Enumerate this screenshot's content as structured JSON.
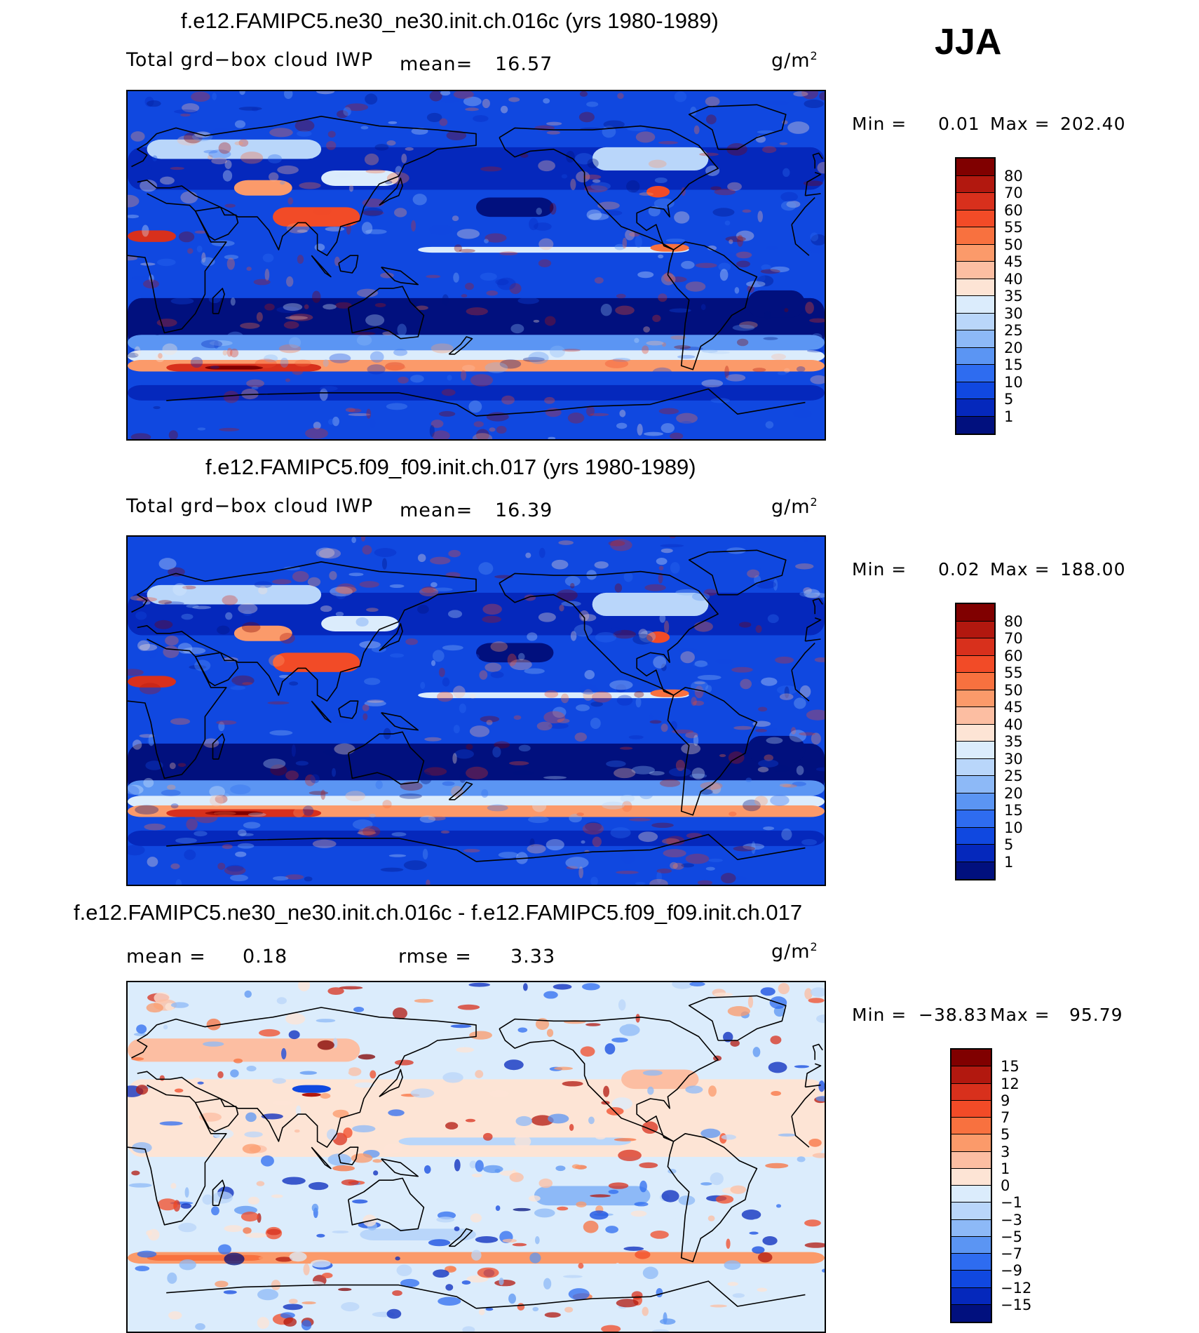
{
  "season": "JJA",
  "panels": [
    {
      "id": "p1",
      "title": "f.e12.FAMIPC5.ne30_ne30.init.ch.016c (yrs 1980-1989)",
      "variable": "Total grd−box cloud IWP",
      "mean_label": "mean=",
      "mean_value": "16.57",
      "units": "g/m",
      "units_exp": "2",
      "min_label": "Min =",
      "min_value": "0.01",
      "max_label": "Max =",
      "max_value": "202.40",
      "ticks": [
        "80",
        "70",
        "60",
        "55",
        "50",
        "45",
        "40",
        "35",
        "30",
        "25",
        "20",
        "15",
        "10",
        "5",
        "1"
      ],
      "colors": [
        "#800000",
        "#b2180f",
        "#d8301c",
        "#f24b27",
        "#f8713f",
        "#fb9a6a",
        "#fcbea2",
        "#fde4d5",
        "#dbecfc",
        "#b9d6fa",
        "#8db9f7",
        "#5b95f3",
        "#2e6cf0",
        "#1048e0",
        "#0528bc",
        "#01107e"
      ],
      "field": "base"
    },
    {
      "id": "p2",
      "title": "f.e12.FAMIPC5.f09_f09.init.ch.017 (yrs 1980-1989)",
      "variable": "Total grd−box cloud IWP",
      "mean_label": "mean=",
      "mean_value": "16.39",
      "units": "g/m",
      "units_exp": "2",
      "min_label": "Min =",
      "min_value": "0.02",
      "max_label": "Max =",
      "max_value": "188.00",
      "ticks": [
        "80",
        "70",
        "60",
        "55",
        "50",
        "45",
        "40",
        "35",
        "30",
        "25",
        "20",
        "15",
        "10",
        "5",
        "1"
      ],
      "colors": [
        "#800000",
        "#b2180f",
        "#d8301c",
        "#f24b27",
        "#f8713f",
        "#fb9a6a",
        "#fcbea2",
        "#fde4d5",
        "#dbecfc",
        "#b9d6fa",
        "#8db9f7",
        "#5b95f3",
        "#2e6cf0",
        "#1048e0",
        "#0528bc",
        "#01107e"
      ],
      "field": "base"
    },
    {
      "id": "p3",
      "title": "f.e12.FAMIPC5.ne30_ne30.init.ch.016c - f.e12.FAMIPC5.f09_f09.init.ch.017",
      "mean_label": "mean =",
      "mean_value": "0.18",
      "rmse_label": "rmse =",
      "rmse_value": "3.33",
      "units": "g/m",
      "units_exp": "2",
      "min_label": "Min =",
      "min_value": "−38.83",
      "max_label": "Max =",
      "max_value": "95.79",
      "ticks": [
        "15",
        "12",
        "9",
        "7",
        "5",
        "3",
        "1",
        "0",
        "−1",
        "−3",
        "−5",
        "−7",
        "−9",
        "−12",
        "−15"
      ],
      "colors": [
        "#800000",
        "#b2180f",
        "#d8301c",
        "#f24b27",
        "#f8713f",
        "#fb9a6a",
        "#fcbea2",
        "#fde4d5",
        "#dbecfc",
        "#b9d6fa",
        "#8db9f7",
        "#5b95f3",
        "#2e6cf0",
        "#1048e0",
        "#0528bc",
        "#01107e"
      ],
      "field": "diff"
    }
  ]
}
